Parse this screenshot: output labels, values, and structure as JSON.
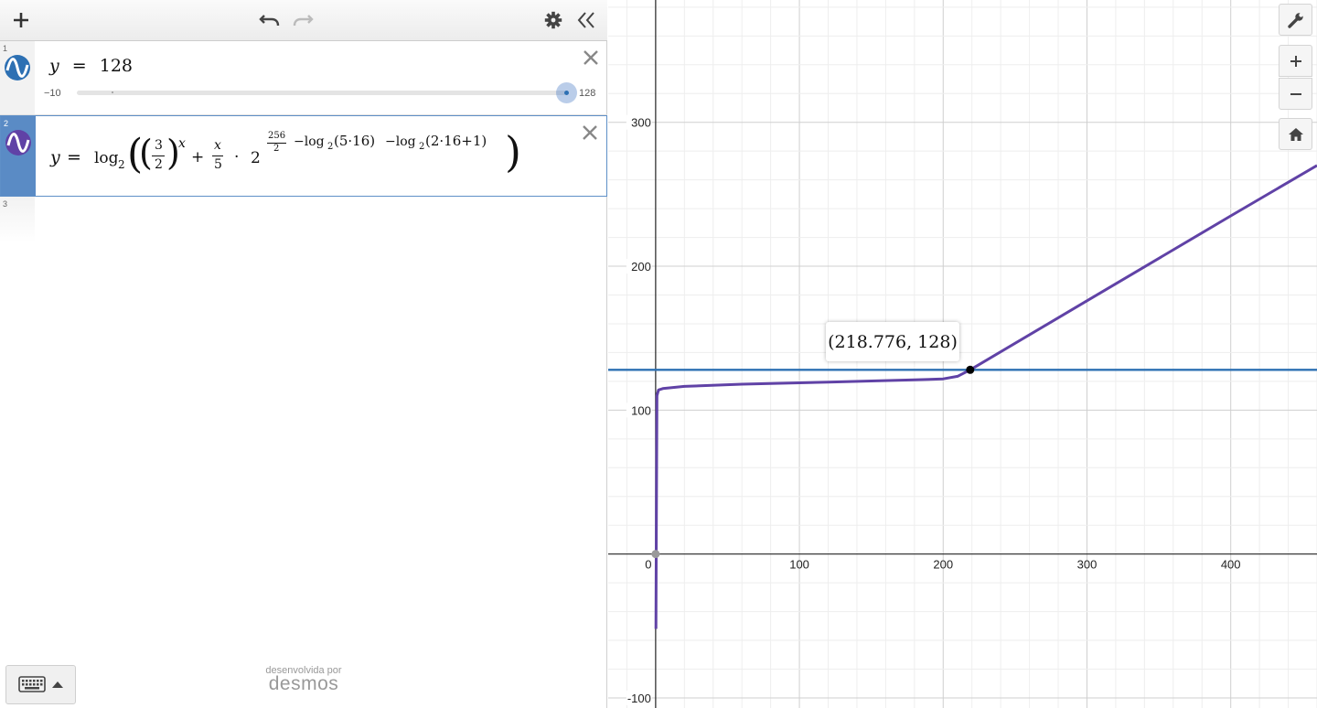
{
  "toolbar": {
    "add_icon": "plus-icon",
    "undo_icon": "undo-icon",
    "redo_icon": "redo-icon",
    "settings_icon": "gear-icon",
    "collapse_icon": "double-chevron-left-icon"
  },
  "expressions": [
    {
      "index": "1",
      "color": "#2d70b3",
      "lhs": "y",
      "eq": "=",
      "rhs": "128",
      "slider": {
        "min": "−10",
        "max": "128",
        "value": 128
      }
    },
    {
      "index": "2",
      "color": "#6042a6",
      "lhs": "y",
      "eq": "=",
      "parts": {
        "log": "log",
        "sub2": "2",
        "lparen_outer": "(",
        "lparen_inner": "(",
        "frac1_num": "3",
        "frac1_den": "2",
        "rparen_inner": ")",
        "exp_x": "x",
        "plus": "+",
        "frac2_num": "x",
        "frac2_den": "5",
        "cdot": "·",
        "two": "2",
        "expfrac_num": "256",
        "expfrac_den": "2",
        "exp_rest_a": "−log",
        "exp_sub_a": "2",
        "exp_arg_a": "(5·16)",
        "exp_rest_b": "−log",
        "exp_sub_b": "2",
        "exp_arg_b": "(2·16+1)",
        "rparen_outer": ")"
      }
    },
    {
      "index": "3"
    }
  ],
  "watermark": {
    "pre": "desenvolvida por",
    "logo": "desmos"
  },
  "graph_controls": [
    "wrench-icon",
    "zoom-in-icon",
    "zoom-out-icon",
    "home-icon"
  ],
  "tooltip": {
    "text": "(218.776, 128)"
  },
  "chart_data": {
    "type": "line",
    "xlim": [
      -33,
      460
    ],
    "ylim": [
      -107,
      385
    ],
    "x_ticks": [
      "0",
      "100",
      "200",
      "300",
      "400"
    ],
    "y_ticks": [
      "300",
      "200",
      "100",
      "-100"
    ],
    "grid": true,
    "series": [
      {
        "color": "#2d70b3",
        "points": [
          [
            -33,
            128
          ],
          [
            460,
            128
          ]
        ]
      },
      {
        "color": "#6042a6",
        "points": [
          [
            0.2,
            -52
          ],
          [
            0.4,
            0
          ],
          [
            0.9,
            110
          ],
          [
            2,
            114
          ],
          [
            5,
            115
          ],
          [
            20,
            116.5
          ],
          [
            60,
            118
          ],
          [
            120,
            119.5
          ],
          [
            180,
            121
          ],
          [
            200,
            121.7
          ],
          [
            210,
            123.5
          ],
          [
            218.776,
            128
          ],
          [
            300,
            176
          ],
          [
            400,
            235
          ],
          [
            460,
            270
          ]
        ]
      }
    ],
    "points": [
      {
        "x": 218.776,
        "y": 128,
        "color": "#000000"
      },
      {
        "x": 0,
        "y": 0,
        "color": "#9a9a9a"
      }
    ]
  }
}
